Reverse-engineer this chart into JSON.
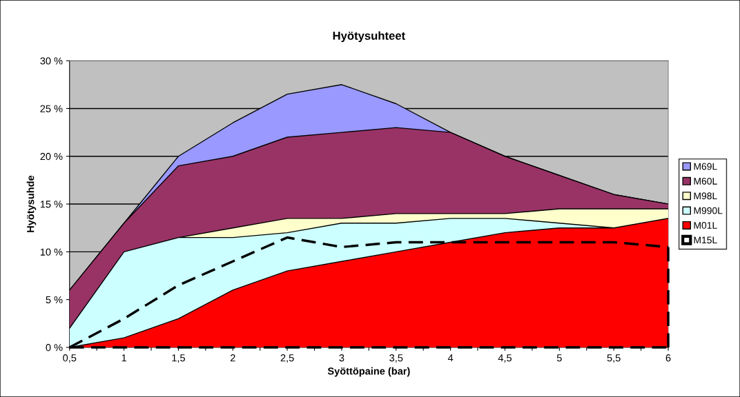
{
  "chart_data": {
    "type": "area",
    "title": "Hyötysuhteet",
    "xlabel": "Syöttöpaine (bar)",
    "ylabel": "Hyötysuhde",
    "x": [
      0.5,
      1,
      1.5,
      2,
      2.5,
      3,
      3.5,
      4,
      4.5,
      5,
      5.5,
      6
    ],
    "series": [
      {
        "name": "M69L",
        "color": "#9999ff",
        "values": [
          6,
          13,
          20,
          23.5,
          26.5,
          27.5,
          25.5,
          22.5,
          20,
          18,
          16,
          15
        ]
      },
      {
        "name": "M60L",
        "color": "#993366",
        "values": [
          6,
          13,
          19,
          20,
          22,
          22.5,
          23,
          22.5,
          20,
          18,
          16,
          15
        ]
      },
      {
        "name": "M98L",
        "color": "#ffffcc",
        "values": [
          null,
          null,
          11.5,
          12.5,
          13.5,
          13.5,
          14,
          14,
          14,
          14.5,
          14.5,
          14.5
        ]
      },
      {
        "name": "M990L",
        "color": "#ccffff",
        "values": [
          2,
          10,
          11.5,
          11.5,
          12,
          13,
          13,
          13.5,
          13.5,
          13,
          12.5,
          null
        ]
      },
      {
        "name": "M01L",
        "color": "#ff0000",
        "values": [
          0,
          1,
          3,
          6,
          8,
          9,
          10,
          11,
          12,
          12.5,
          12.5,
          13.5
        ]
      },
      {
        "name": "M15L",
        "type": "line",
        "color": "#000000",
        "line_style": "dashed",
        "values": [
          0,
          3,
          6.5,
          9,
          11.5,
          10.5,
          11,
          11,
          11,
          11,
          11,
          10.5
        ]
      }
    ],
    "xlim": [
      0.5,
      6
    ],
    "xticks": [
      {
        "value": 0.5,
        "label": "0,5"
      },
      {
        "value": 0.75,
        "label": null
      },
      1,
      {
        "value": 1.25,
        "label": null
      },
      {
        "value": 1.5,
        "label": "1,5"
      },
      {
        "value": 1.75,
        "label": null
      },
      2,
      {
        "value": 2.25,
        "label": null
      },
      {
        "value": 2.5,
        "label": "2,5"
      },
      {
        "value": 2.75,
        "label": null
      },
      3,
      {
        "value": 3.25,
        "label": null
      },
      {
        "value": 3.5,
        "label": "3,5"
      },
      {
        "value": 3.75,
        "label": null
      },
      4,
      {
        "value": 4.25,
        "label": null
      },
      {
        "value": 4.5,
        "label": "4,5"
      },
      {
        "value": 4.75,
        "label": null
      },
      5,
      {
        "value": 5.25,
        "label": null
      },
      {
        "value": 5.5,
        "label": "5,5"
      },
      {
        "value": 5.75,
        "label": null
      },
      6
    ],
    "ylim": [
      0,
      30
    ],
    "yticks": [
      {
        "value": 0,
        "label": "0 %"
      },
      {
        "value": 5,
        "label": "5 %"
      },
      {
        "value": 10,
        "label": "10 %"
      },
      {
        "value": 15,
        "label": "15 %"
      },
      {
        "value": 20,
        "label": "20 %"
      },
      {
        "value": 25,
        "label": "25 %"
      },
      {
        "value": 30,
        "label": "30 %"
      }
    ],
    "grid": "y",
    "legend": "right"
  }
}
